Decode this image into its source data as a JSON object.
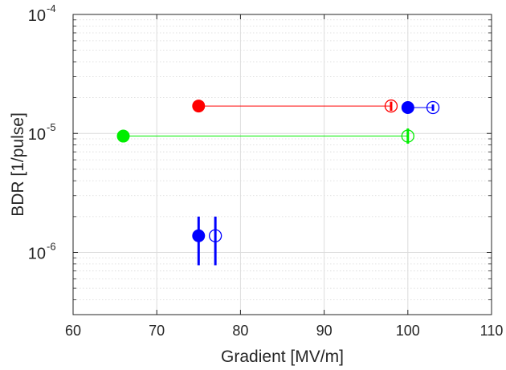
{
  "chart_data": {
    "type": "scatter",
    "title": "",
    "xlabel": "Gradient [MV/m]",
    "ylabel": "BDR [1/pulse]",
    "xlim": [
      60,
      110
    ],
    "ylim": [
      3e-07,
      0.0001
    ],
    "yscale": "log",
    "grid": true,
    "minor_grid": true,
    "x_ticks": [
      60,
      70,
      80,
      90,
      100,
      110
    ],
    "x_tick_labels": [
      "60",
      "70",
      "80",
      "90",
      "100",
      "110"
    ],
    "y_ticks": [
      1e-06,
      1e-05,
      0.0001
    ],
    "y_tick_labels": [
      {
        "base": "10",
        "exp": "-6"
      },
      {
        "base": "10",
        "exp": "-5"
      },
      {
        "base": "10",
        "exp": "-4"
      }
    ],
    "series": [
      {
        "color": "#ff0000",
        "connect": true,
        "points": [
          {
            "x": 75,
            "y": 1.7e-05,
            "filled": true,
            "y_err_low": 1.7e-05,
            "y_err_high": 1.7e-05
          },
          {
            "x": 98,
            "y": 1.7e-05,
            "filled": false,
            "y_err_low": 1.55e-05,
            "y_err_high": 1.85e-05
          }
        ]
      },
      {
        "color": "#0000ff",
        "connect": true,
        "points": [
          {
            "x": 100,
            "y": 1.65e-05,
            "filled": true,
            "y_err_low": 1.65e-05,
            "y_err_high": 1.65e-05
          },
          {
            "x": 103,
            "y": 1.65e-05,
            "filled": false,
            "y_err_low": 1.55e-05,
            "y_err_high": 1.75e-05
          }
        ]
      },
      {
        "color": "#00ee00",
        "connect": true,
        "points": [
          {
            "x": 66,
            "y": 9.5e-06,
            "filled": true,
            "y_err_low": 9.5e-06,
            "y_err_high": 9.5e-06
          },
          {
            "x": 100,
            "y": 9.5e-06,
            "filled": false,
            "y_err_low": 8.2e-06,
            "y_err_high": 1.1e-05
          }
        ]
      },
      {
        "color": "#0000ff",
        "connect": false,
        "points": [
          {
            "x": 75,
            "y": 1.38e-06,
            "filled": true,
            "y_err_low": 7.8e-07,
            "y_err_high": 2e-06
          },
          {
            "x": 77,
            "y": 1.38e-06,
            "filled": false,
            "y_err_low": 7.8e-07,
            "y_err_high": 2e-06
          }
        ]
      }
    ]
  }
}
